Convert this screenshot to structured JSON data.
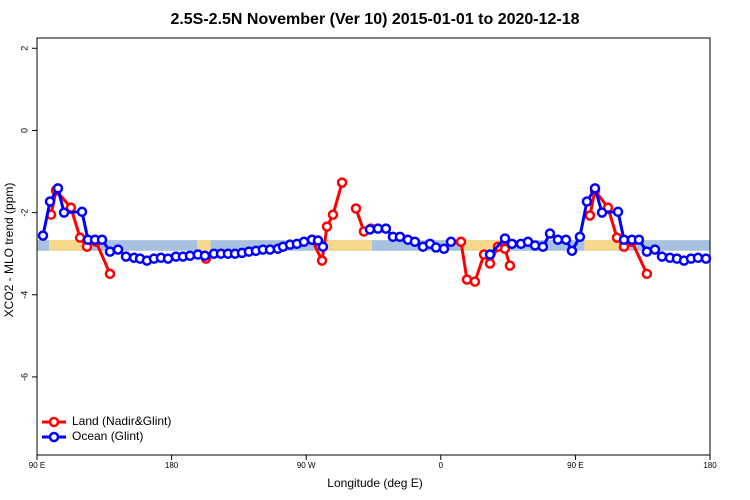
{
  "chart_data": {
    "type": "line",
    "title": "2.5S-2.5N November (Ver 10)   2015-01-01 to 2020-12-18",
    "x_label": "Longitude (deg E)",
    "y_label": "XCO2 - MLO trend (ppm)",
    "xlim": [
      90,
      540
    ],
    "ylim": [
      -7.9,
      2.25
    ],
    "xticks": [
      {
        "value": 90,
        "label": "90 E"
      },
      180,
      {
        "value": 270,
        "label": "90 W"
      },
      {
        "value": 360,
        "label": "0"
      },
      {
        "value": 450,
        "label": "90 E"
      },
      {
        "value": 540,
        "label": "180"
      }
    ],
    "yticks": [
      2,
      0,
      -2,
      -4,
      -6
    ],
    "legend": "bottom-left",
    "band": {
      "ylim": [
        -2.93,
        -2.67
      ],
      "color": "#a8c1e0",
      "land_color": "#f7d98b",
      "land_xranges": [
        [
          98,
          122
        ],
        [
          197,
          206
        ],
        [
          282,
          314
        ],
        [
          373,
          400
        ],
        [
          456,
          480
        ]
      ]
    },
    "series": [
      {
        "name": "Land (Nadir&Glint)",
        "color": "#ff0000",
        "x": [
          99.4,
          102.7,
          112.7,
          118.8,
          123.4,
          129.5,
          138.8,
          null,
          203.0,
          null,
          273.9,
          280.6,
          283.9,
          287.9,
          294.0,
          null,
          303.3,
          308.6,
          313.3,
          null,
          373.5,
          377.5,
          382.8,
          388.9,
          392.9,
          398.2,
          402.9,
          406.2,
          null,
          459.7,
          463.1,
          471.8,
          477.8,
          482.5,
          487.8,
          497.8
        ],
        "values": [
          -2.05,
          -1.46,
          -1.88,
          -2.61,
          -2.83,
          -2.71,
          -3.49,
          null,
          -3.12,
          null,
          -2.66,
          -3.17,
          -2.34,
          -2.05,
          -1.27,
          null,
          -1.9,
          -2.46,
          -2.39,
          null,
          -2.71,
          -3.63,
          -3.68,
          -3.02,
          -3.24,
          -2.83,
          -2.88,
          -3.29,
          null,
          -2.07,
          -1.46,
          -1.88,
          -2.61,
          -2.83,
          -2.71,
          -3.49
        ]
      },
      {
        "name": "Ocean (Glint)",
        "color": "#0000ff",
        "x": [
          94.0,
          98.7,
          104.0,
          108.1,
          120.1,
          124.1,
          128.8,
          133.5,
          138.8,
          144.2,
          149.5,
          154.9,
          158.9,
          163.5,
          168.2,
          172.9,
          177.6,
          182.9,
          187.6,
          192.3,
          197.6,
          202.3,
          208.3,
          213.0,
          217.7,
          222.4,
          227.1,
          231.7,
          236.4,
          241.1,
          245.8,
          251.1,
          254.5,
          259.2,
          263.8,
          268.5,
          273.9,
          277.9,
          281.2,
          null,
          312.6,
          318.0,
          323.3,
          328.0,
          332.7,
          338.0,
          342.7,
          348.1,
          352.8,
          356.8,
          362.1,
          366.8,
          null,
          392.9,
          402.9,
          407.6,
          413.6,
          418.3,
          423.0,
          428.3,
          433.0,
          438.3,
          443.7,
          447.7,
          453.0,
          457.7,
          463.1,
          467.8,
          478.5,
          482.5,
          487.8,
          492.5,
          497.8,
          503.2,
          507.9,
          513.2,
          517.9,
          522.6,
          527.3,
          532.0,
          537.3
        ],
        "values": [
          -2.56,
          -1.73,
          -1.41,
          -2.0,
          -1.98,
          -2.66,
          -2.66,
          -2.66,
          -2.95,
          -2.9,
          -3.07,
          -3.1,
          -3.12,
          -3.17,
          -3.12,
          -3.1,
          -3.12,
          -3.07,
          -3.07,
          -3.05,
          -3.02,
          -3.05,
          -3.0,
          -3.0,
          -3.0,
          -3.0,
          -2.98,
          -2.95,
          -2.93,
          -2.9,
          -2.9,
          -2.88,
          -2.83,
          -2.78,
          -2.76,
          -2.71,
          -2.66,
          -2.68,
          -2.83,
          null,
          -2.41,
          -2.39,
          -2.39,
          -2.59,
          -2.59,
          -2.66,
          -2.71,
          -2.83,
          -2.76,
          -2.85,
          -2.88,
          -2.71,
          null,
          -3.02,
          -2.63,
          -2.76,
          -2.76,
          -2.71,
          -2.8,
          -2.83,
          -2.51,
          -2.66,
          -2.66,
          -2.93,
          -2.59,
          -1.73,
          -1.41,
          -2.0,
          -1.98,
          -2.66,
          -2.66,
          -2.66,
          -2.95,
          -2.9,
          -3.07,
          -3.1,
          -3.12,
          -3.17,
          -3.12,
          -3.1,
          -3.12
        ]
      }
    ]
  }
}
